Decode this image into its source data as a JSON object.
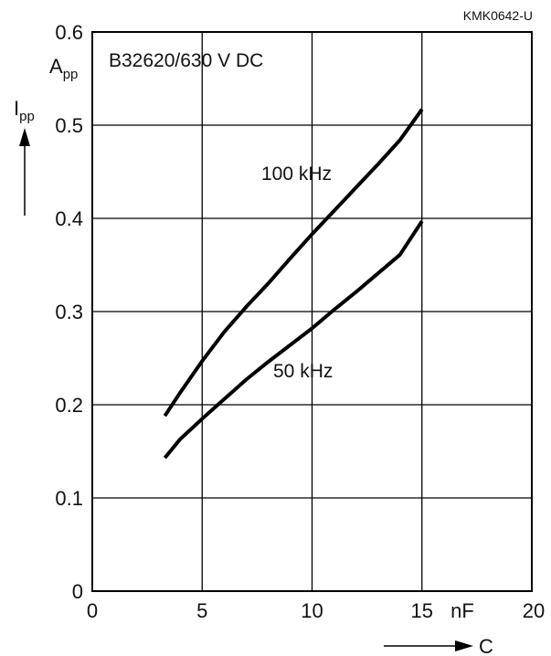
{
  "figure_id": "KMK0642-U",
  "chart_data": {
    "type": "line",
    "title": "B32620/630 V DC",
    "y_axis": {
      "symbol": "I",
      "symbol_sub": "pp",
      "unit": "A",
      "unit_sub": "pp",
      "ylim": [
        0,
        0.6
      ],
      "ticks": [
        0,
        0.1,
        0.2,
        0.3,
        0.4,
        0.5,
        0.6
      ],
      "tick_labels": [
        "0",
        "0.1",
        "0.2",
        "0.3",
        "0.4",
        "0.5",
        "0.6"
      ]
    },
    "x_axis": {
      "symbol": "C",
      "unit": "nF",
      "xlim": [
        0,
        20
      ],
      "ticks": [
        0,
        5,
        10,
        15,
        20
      ],
      "tick_labels": [
        "0",
        "5",
        "10",
        "15",
        "20"
      ]
    },
    "grid": true,
    "series": [
      {
        "name": "100 kHz",
        "x": [
          3.3,
          4.0,
          5.0,
          6.0,
          7.0,
          8.0,
          9.0,
          10.0,
          11.0,
          12.0,
          13.0,
          14.0,
          15.0
        ],
        "y": [
          0.188,
          0.213,
          0.247,
          0.278,
          0.305,
          0.33,
          0.357,
          0.383,
          0.408,
          0.433,
          0.458,
          0.484,
          0.517
        ]
      },
      {
        "name": "50 kHz",
        "x": [
          3.3,
          4.0,
          5.0,
          6.0,
          7.0,
          8.0,
          9.0,
          10.0,
          11.0,
          12.0,
          13.0,
          14.0,
          15.0
        ],
        "y": [
          0.143,
          0.163,
          0.185,
          0.206,
          0.227,
          0.246,
          0.264,
          0.282,
          0.302,
          0.321,
          0.341,
          0.361,
          0.397
        ]
      }
    ]
  }
}
